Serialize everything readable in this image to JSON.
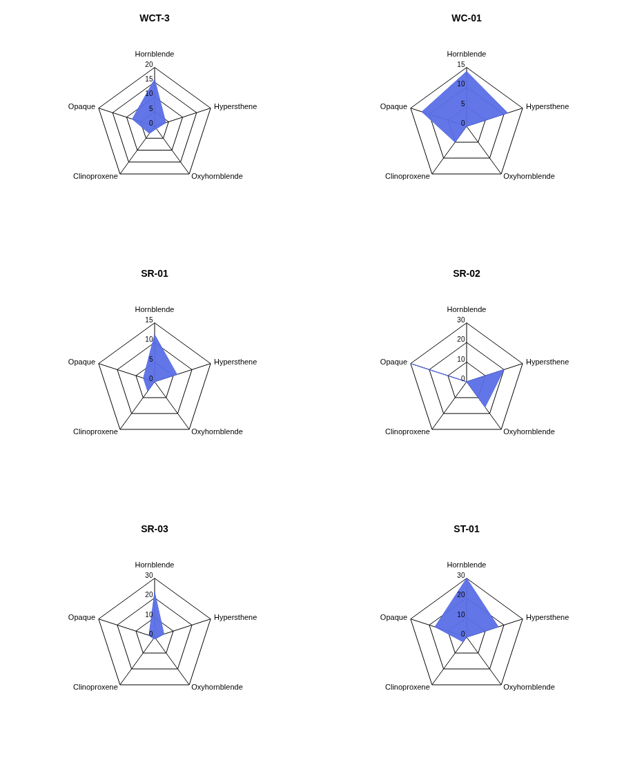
{
  "chart_data": [
    {
      "type": "radar",
      "title": "WCT-3",
      "categories": [
        "Hornblende",
        "Hypersthene",
        "Oxyhornblende",
        "Clinoproxene",
        "Opaque"
      ],
      "ylim": [
        0,
        20
      ],
      "yticks": [
        0,
        5,
        10,
        15,
        20
      ],
      "grid": true,
      "series": [
        {
          "color": "#5b6fe6",
          "values": [
            16,
            4,
            1,
            3,
            8
          ]
        }
      ]
    },
    {
      "type": "radar",
      "title": "WC-01",
      "categories": [
        "Hornblende",
        "Hypersthene",
        "Oxyhornblende",
        "Clinoproxene",
        "Opaque"
      ],
      "ylim": [
        0,
        15
      ],
      "yticks": [
        0,
        5,
        10,
        15
      ],
      "grid": true,
      "series": [
        {
          "color": "#5b6fe6",
          "values": [
            14,
            11,
            0,
            5,
            12
          ]
        }
      ]
    },
    {
      "type": "radar",
      "title": "SR-01",
      "categories": [
        "Hornblende",
        "Hypersthene",
        "Oxyhornblende",
        "Clinoproxene",
        "Opaque"
      ],
      "ylim": [
        0,
        15
      ],
      "yticks": [
        0,
        5,
        10,
        15
      ],
      "grid": true,
      "series": [
        {
          "color": "#5b6fe6",
          "values": [
            12,
            6,
            0,
            3,
            3
          ]
        }
      ]
    },
    {
      "type": "radar",
      "title": "SR-02",
      "categories": [
        "Hornblende",
        "Hypersthene",
        "Oxyhornblende",
        "Clinoproxene",
        "Opaque"
      ],
      "ylim": [
        0,
        30
      ],
      "yticks": [
        0,
        10,
        20,
        30
      ],
      "grid": true,
      "series": [
        {
          "color": "#5b6fe6",
          "values": [
            0,
            20,
            16,
            0,
            30
          ]
        }
      ]
    },
    {
      "type": "radar",
      "title": "SR-03",
      "categories": [
        "Hornblende",
        "Hypersthene",
        "Oxyhornblende",
        "Clinoproxene",
        "Opaque"
      ],
      "ylim": [
        0,
        30
      ],
      "yticks": [
        0,
        10,
        20,
        30
      ],
      "grid": true,
      "series": [
        {
          "color": "#5b6fe6",
          "values": [
            23,
            5,
            1,
            1,
            3
          ]
        }
      ]
    },
    {
      "type": "radar",
      "title": "ST-01",
      "categories": [
        "Hornblende",
        "Hypersthene",
        "Oxyhornblende",
        "Clinoproxene",
        "Opaque"
      ],
      "ylim": [
        0,
        30
      ],
      "yticks": [
        0,
        10,
        20,
        30
      ],
      "grid": true,
      "series": [
        {
          "color": "#5b6fe6",
          "values": [
            30,
            17,
            0,
            3,
            17
          ]
        }
      ]
    }
  ]
}
